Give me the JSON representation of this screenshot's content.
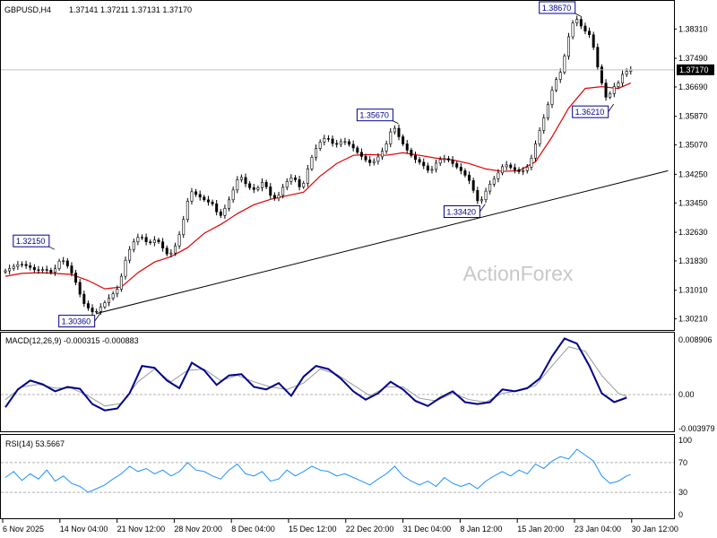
{
  "chart_data": {
    "type": "candlestick",
    "instrument": "GBPUSD,H4",
    "header": {
      "symbol": "GBPUSD,H4",
      "ohlc": "1.37141 1.37211 1.37131 1.37170"
    },
    "watermark": "ActionForex",
    "price_axis": {
      "ylim": [
        1.2995,
        1.3892
      ],
      "ticks": [
        "1.38310",
        "1.37490",
        "1.36690",
        "1.35870",
        "1.35070",
        "1.34250",
        "1.33450",
        "1.32630",
        "1.31830",
        "1.31010",
        "1.30210"
      ],
      "tick_values": [
        1.3831,
        1.3749,
        1.3669,
        1.3587,
        1.3507,
        1.3425,
        1.3345,
        1.3263,
        1.3183,
        1.3101,
        1.3021
      ]
    },
    "current_price": {
      "value": 1.3717,
      "label": "1.37170"
    },
    "time_axis": {
      "labels": [
        "6 Nov 2025",
        "14 Nov 04:00",
        "21 Nov 12:00",
        "28 Nov 20:00",
        "8 Dec 04:00",
        "15 Dec 12:00",
        "22 Dec 20:00",
        "31 Dec 04:00",
        "8 Jan 12:00",
        "15 Jan 20:00",
        "23 Jan 04:00",
        "30 Jan 12:00"
      ]
    },
    "price_path": [
      [
        0,
        1.3152
      ],
      [
        2,
        1.3165
      ],
      [
        4,
        1.3175
      ],
      [
        6,
        1.3168
      ],
      [
        8,
        1.3155
      ],
      [
        10,
        1.316
      ],
      [
        12,
        1.3148
      ],
      [
        13,
        1.3175
      ],
      [
        14,
        1.319
      ],
      [
        16,
        1.3162
      ],
      [
        18,
        1.311
      ],
      [
        19,
        1.307
      ],
      [
        21,
        1.3045
      ],
      [
        22,
        1.3036
      ],
      [
        24,
        1.306
      ],
      [
        26,
        1.3085
      ],
      [
        28,
        1.311
      ],
      [
        29,
        1.317
      ],
      [
        31,
        1.323
      ],
      [
        33,
        1.3255
      ],
      [
        35,
        1.323
      ],
      [
        37,
        1.3245
      ],
      [
        39,
        1.321
      ],
      [
        40,
        1.3195
      ],
      [
        42,
        1.3235
      ],
      [
        44,
        1.332
      ],
      [
        45,
        1.338
      ],
      [
        47,
        1.3365
      ],
      [
        49,
        1.335
      ],
      [
        51,
        1.334
      ],
      [
        52,
        1.33
      ],
      [
        54,
        1.334
      ],
      [
        56,
        1.3395
      ],
      [
        57,
        1.3425
      ],
      [
        59,
        1.339
      ],
      [
        61,
        1.338
      ],
      [
        63,
        1.341
      ],
      [
        64,
        1.337
      ],
      [
        66,
        1.3355
      ],
      [
        68,
        1.34
      ],
      [
        70,
        1.342
      ],
      [
        72,
        1.338
      ],
      [
        74,
        1.346
      ],
      [
        76,
        1.351
      ],
      [
        78,
        1.353
      ],
      [
        80,
        1.3505
      ],
      [
        82,
        1.352
      ],
      [
        84,
        1.3505
      ],
      [
        86,
        1.348
      ],
      [
        88,
        1.346
      ],
      [
        89,
        1.3455
      ],
      [
        91,
        1.348
      ],
      [
        93,
        1.352
      ],
      [
        94,
        1.3567
      ],
      [
        95,
        1.354
      ],
      [
        97,
        1.35
      ],
      [
        99,
        1.347
      ],
      [
        101,
        1.3455
      ],
      [
        103,
        1.343
      ],
      [
        105,
        1.3465
      ],
      [
        107,
        1.347
      ],
      [
        109,
        1.345
      ],
      [
        111,
        1.343
      ],
      [
        113,
        1.34
      ],
      [
        114,
        1.336
      ],
      [
        115,
        1.3342
      ],
      [
        117,
        1.339
      ],
      [
        119,
        1.342
      ],
      [
        121,
        1.3455
      ],
      [
        123,
        1.344
      ],
      [
        125,
        1.343
      ],
      [
        127,
        1.345
      ],
      [
        129,
        1.353
      ],
      [
        131,
        1.36
      ],
      [
        133,
        1.368
      ],
      [
        135,
        1.372
      ],
      [
        136,
        1.379
      ],
      [
        138,
        1.3867
      ],
      [
        140,
        1.383
      ],
      [
        142,
        1.381
      ],
      [
        143,
        1.375
      ],
      [
        144,
        1.37
      ],
      [
        145,
        1.366
      ],
      [
        146,
        1.3621
      ],
      [
        147,
        1.368
      ],
      [
        148,
        1.366
      ],
      [
        149,
        1.37
      ],
      [
        151,
        1.3717
      ]
    ],
    "ma_path": [
      [
        0,
        1.314
      ],
      [
        4,
        1.3148
      ],
      [
        8,
        1.315
      ],
      [
        12,
        1.3148
      ],
      [
        16,
        1.3145
      ],
      [
        20,
        1.3128
      ],
      [
        24,
        1.3105
      ],
      [
        28,
        1.311
      ],
      [
        32,
        1.315
      ],
      [
        36,
        1.318
      ],
      [
        40,
        1.3195
      ],
      [
        44,
        1.322
      ],
      [
        48,
        1.326
      ],
      [
        52,
        1.3285
      ],
      [
        56,
        1.3315
      ],
      [
        60,
        1.334
      ],
      [
        64,
        1.3355
      ],
      [
        68,
        1.3365
      ],
      [
        72,
        1.3375
      ],
      [
        76,
        1.342
      ],
      [
        80,
        1.3455
      ],
      [
        84,
        1.3478
      ],
      [
        88,
        1.348
      ],
      [
        92,
        1.3478
      ],
      [
        96,
        1.3485
      ],
      [
        100,
        1.3478
      ],
      [
        104,
        1.347
      ],
      [
        108,
        1.3465
      ],
      [
        112,
        1.3455
      ],
      [
        116,
        1.344
      ],
      [
        120,
        1.3433
      ],
      [
        124,
        1.3435
      ],
      [
        128,
        1.346
      ],
      [
        132,
        1.353
      ],
      [
        136,
        1.361
      ],
      [
        140,
        1.3665
      ],
      [
        144,
        1.367
      ],
      [
        148,
        1.3665
      ],
      [
        151,
        1.368
      ]
    ],
    "trendline": {
      "from": [
        22,
        1.3036
      ],
      "to": [
        160,
        1.3435
      ]
    },
    "annotations": [
      {
        "label": "1.32150",
        "bar": 11,
        "price": 1.3215
      },
      {
        "label": "1.30360",
        "bar": 22,
        "price": 1.3036
      },
      {
        "label": "1.35670",
        "bar": 94,
        "price": 1.3567
      },
      {
        "label": "1.33420",
        "bar": 115,
        "price": 1.3342
      },
      {
        "label": "1.38670",
        "bar": 138,
        "price": 1.3867
      },
      {
        "label": "1.36210",
        "bar": 146,
        "price": 1.3621
      }
    ],
    "macd": {
      "title": "MACD(12,26,9) -0.000315 -0.000883",
      "ticks": [
        "0.008906",
        "0.00",
        "-0.003979"
      ],
      "tick_values": [
        0.008906,
        0.0,
        -0.003979
      ],
      "ylim": [
        -0.0055,
        0.0093
      ],
      "zero_line": 0.0,
      "macd_path": [
        [
          0,
          -0.002
        ],
        [
          3,
          0.0008
        ],
        [
          6,
          0.0022
        ],
        [
          9,
          0.0016
        ],
        [
          12,
          0.0005
        ],
        [
          15,
          0.0012
        ],
        [
          18,
          0.0009
        ],
        [
          21,
          -0.0015
        ],
        [
          24,
          -0.0025
        ],
        [
          27,
          -0.0022
        ],
        [
          30,
          0.0002
        ],
        [
          33,
          0.0045
        ],
        [
          36,
          0.0042
        ],
        [
          39,
          0.0022
        ],
        [
          42,
          0.001
        ],
        [
          45,
          0.005
        ],
        [
          48,
          0.0038
        ],
        [
          51,
          0.0015
        ],
        [
          54,
          0.003
        ],
        [
          57,
          0.0032
        ],
        [
          60,
          0.0012
        ],
        [
          63,
          0.0008
        ],
        [
          66,
          0.0018
        ],
        [
          69,
          -0.0002
        ],
        [
          72,
          0.0028
        ],
        [
          75,
          0.0045
        ],
        [
          78,
          0.004
        ],
        [
          81,
          0.0025
        ],
        [
          84,
          0.0005
        ],
        [
          87,
          -0.0008
        ],
        [
          90,
          0.0002
        ],
        [
          93,
          0.002
        ],
        [
          96,
          0.0008
        ],
        [
          99,
          -0.001
        ],
        [
          102,
          -0.0018
        ],
        [
          105,
          -0.0005
        ],
        [
          108,
          0.0005
        ],
        [
          111,
          -0.0012
        ],
        [
          114,
          -0.0015
        ],
        [
          117,
          -0.0012
        ],
        [
          120,
          0.0008
        ],
        [
          123,
          0.0005
        ],
        [
          126,
          0.001
        ],
        [
          129,
          0.0025
        ],
        [
          132,
          0.006
        ],
        [
          135,
          0.0088
        ],
        [
          138,
          0.008
        ],
        [
          141,
          0.0045
        ],
        [
          144,
          0.0002
        ],
        [
          147,
          -0.0012
        ],
        [
          150,
          -0.0005
        ]
      ],
      "signal_path": [
        [
          0,
          -0.0008
        ],
        [
          4,
          0.0012
        ],
        [
          8,
          0.0016
        ],
        [
          12,
          0.001
        ],
        [
          16,
          0.001
        ],
        [
          20,
          -0.0002
        ],
        [
          24,
          -0.0018
        ],
        [
          28,
          -0.0014
        ],
        [
          32,
          0.002
        ],
        [
          36,
          0.004
        ],
        [
          40,
          0.002
        ],
        [
          44,
          0.0038
        ],
        [
          48,
          0.004
        ],
        [
          52,
          0.0022
        ],
        [
          56,
          0.003
        ],
        [
          60,
          0.002
        ],
        [
          64,
          0.0012
        ],
        [
          68,
          0.0008
        ],
        [
          72,
          0.0018
        ],
        [
          76,
          0.004
        ],
        [
          80,
          0.0032
        ],
        [
          84,
          0.0015
        ],
        [
          88,
          -0.0002
        ],
        [
          92,
          0.0012
        ],
        [
          96,
          0.0012
        ],
        [
          100,
          -0.0006
        ],
        [
          104,
          -0.001
        ],
        [
          108,
          0.0002
        ],
        [
          112,
          -0.0008
        ],
        [
          116,
          -0.0012
        ],
        [
          120,
          0.0002
        ],
        [
          124,
          0.0006
        ],
        [
          128,
          0.0014
        ],
        [
          132,
          0.0045
        ],
        [
          136,
          0.0075
        ],
        [
          140,
          0.0068
        ],
        [
          144,
          0.003
        ],
        [
          148,
          0.0002
        ],
        [
          150,
          -0.0003
        ]
      ]
    },
    "rsi": {
      "title": "RSI(14) 53.5667",
      "ticks": [
        "100",
        "70",
        "30",
        "0"
      ],
      "tick_values": [
        100,
        70,
        30,
        0
      ],
      "ylim": [
        0,
        100
      ],
      "levels": [
        70,
        30
      ],
      "path": [
        [
          0,
          50
        ],
        [
          2,
          58
        ],
        [
          4,
          46
        ],
        [
          6,
          55
        ],
        [
          8,
          48
        ],
        [
          10,
          60
        ],
        [
          12,
          45
        ],
        [
          14,
          52
        ],
        [
          16,
          42
        ],
        [
          18,
          38
        ],
        [
          20,
          30
        ],
        [
          22,
          35
        ],
        [
          24,
          40
        ],
        [
          26,
          48
        ],
        [
          28,
          55
        ],
        [
          30,
          65
        ],
        [
          32,
          58
        ],
        [
          34,
          62
        ],
        [
          36,
          55
        ],
        [
          38,
          60
        ],
        [
          40,
          52
        ],
        [
          42,
          58
        ],
        [
          44,
          70
        ],
        [
          46,
          60
        ],
        [
          48,
          58
        ],
        [
          50,
          52
        ],
        [
          52,
          48
        ],
        [
          54,
          60
        ],
        [
          56,
          68
        ],
        [
          58,
          55
        ],
        [
          60,
          52
        ],
        [
          62,
          58
        ],
        [
          64,
          45
        ],
        [
          66,
          48
        ],
        [
          68,
          60
        ],
        [
          70,
          52
        ],
        [
          72,
          58
        ],
        [
          74,
          65
        ],
        [
          76,
          60
        ],
        [
          78,
          58
        ],
        [
          80,
          52
        ],
        [
          82,
          55
        ],
        [
          84,
          50
        ],
        [
          86,
          45
        ],
        [
          88,
          40
        ],
        [
          90,
          48
        ],
        [
          92,
          55
        ],
        [
          94,
          65
        ],
        [
          96,
          52
        ],
        [
          98,
          45
        ],
        [
          100,
          40
        ],
        [
          102,
          45
        ],
        [
          104,
          38
        ],
        [
          106,
          50
        ],
        [
          108,
          42
        ],
        [
          110,
          38
        ],
        [
          112,
          42
        ],
        [
          114,
          35
        ],
        [
          116,
          45
        ],
        [
          118,
          52
        ],
        [
          120,
          58
        ],
        [
          122,
          52
        ],
        [
          124,
          60
        ],
        [
          126,
          55
        ],
        [
          128,
          68
        ],
        [
          130,
          62
        ],
        [
          132,
          72
        ],
        [
          134,
          78
        ],
        [
          136,
          75
        ],
        [
          138,
          88
        ],
        [
          140,
          80
        ],
        [
          142,
          72
        ],
        [
          144,
          52
        ],
        [
          146,
          42
        ],
        [
          148,
          45
        ],
        [
          150,
          52
        ],
        [
          151,
          54
        ]
      ]
    },
    "colors": {
      "up_candle": "#000000",
      "down_candle": "#000000",
      "moving_average": "#e00000",
      "trendline": "#000000",
      "macd_line": "#00008b",
      "macd_signal": "#999999",
      "rsi_line": "#1e90ff",
      "grid_dashed": "#b0b0b0",
      "watermark": "#c8c8c8"
    }
  }
}
